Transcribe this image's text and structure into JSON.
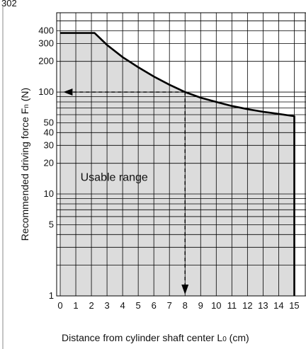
{
  "header_fragment": "302",
  "chart_data": {
    "type": "area",
    "title": "",
    "ylabel": {
      "main": "Recommended driving force  F",
      "sub": "n",
      "unit": " (N)"
    },
    "xlabel": {
      "main": "Distance from cylinder shaft center  L",
      "sub": "0",
      "unit": " (cm)"
    },
    "x_ticks": [
      "0",
      "1",
      "2",
      "3",
      "4",
      "5",
      "6",
      "7",
      "8",
      "9",
      "10",
      "11",
      "12",
      "13",
      "14",
      "15"
    ],
    "y_ticks": [
      {
        "value": 1,
        "label": "1"
      },
      {
        "value": 5,
        "label": "5"
      },
      {
        "value": 10,
        "label": "10"
      },
      {
        "value": 20,
        "label": "20"
      },
      {
        "value": 30,
        "label": "30"
      },
      {
        "value": 40,
        "label": "40"
      },
      {
        "value": 50,
        "label": "50"
      },
      {
        "value": 100,
        "label": "100"
      },
      {
        "value": 200,
        "label": "200"
      },
      {
        "value": 300,
        "label": "300"
      },
      {
        "value": 400,
        "label": "400"
      }
    ],
    "xlim": [
      0,
      15.3
    ],
    "ylim": [
      1,
      600
    ],
    "y_scale": "log",
    "grid": true,
    "region_label": "Usable range",
    "boundary": {
      "x": [
        0,
        2.2,
        3,
        4,
        5,
        6,
        7,
        8,
        9,
        10,
        11,
        12,
        13,
        14,
        15,
        15
      ],
      "y": [
        380,
        380,
        290,
        220,
        175,
        142,
        118,
        100,
        88,
        80,
        73,
        68,
        64,
        61,
        58,
        1
      ]
    },
    "example": {
      "x": 8,
      "y": 100
    }
  }
}
